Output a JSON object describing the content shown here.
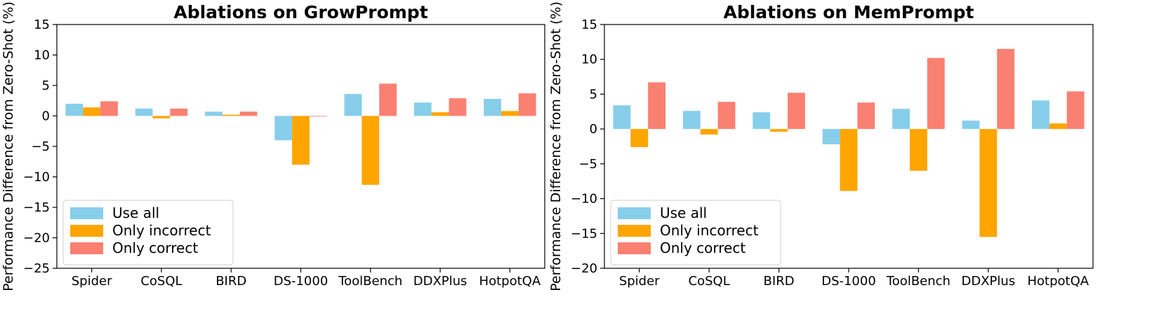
{
  "chart_data": [
    {
      "type": "bar",
      "title": "Ablations on GrowPrompt",
      "xlabel": "",
      "ylabel": "Performance Difference from Zero-Shot (%)",
      "ylim": [
        -25,
        15
      ],
      "yticks": [
        15,
        10,
        5,
        0,
        -5,
        -10,
        -15,
        -20,
        -25
      ],
      "grid": false,
      "legend_position": "lower-left",
      "categories": [
        "Spider",
        "CoSQL",
        "BIRD",
        "DS-1000",
        "ToolBench",
        "DDXPlus",
        "HotpotQA"
      ],
      "series": [
        {
          "name": "Use all",
          "color": "#87ceeb",
          "values": [
            2.0,
            1.2,
            0.7,
            -4.0,
            3.6,
            2.2,
            2.8
          ]
        },
        {
          "name": "Only incorrect",
          "color": "#ffa500",
          "values": [
            1.4,
            -0.4,
            0.2,
            -8.0,
            -11.3,
            0.6,
            0.8
          ]
        },
        {
          "name": "Only correct",
          "color": "#fa8072",
          "values": [
            2.4,
            1.2,
            0.7,
            -0.1,
            5.3,
            2.9,
            3.7
          ]
        }
      ]
    },
    {
      "type": "bar",
      "title": "Ablations on MemPrompt",
      "xlabel": "",
      "ylabel": "Performance Difference from Zero-Shot (%)",
      "ylim": [
        -20,
        15
      ],
      "yticks": [
        15,
        10,
        5,
        0,
        -5,
        -10,
        -15,
        -20
      ],
      "grid": false,
      "legend_position": "lower-left",
      "categories": [
        "Spider",
        "CoSQL",
        "BIRD",
        "DS-1000",
        "ToolBench",
        "DDXPlus",
        "HotpotQA"
      ],
      "series": [
        {
          "name": "Use all",
          "color": "#87ceeb",
          "values": [
            3.4,
            2.6,
            2.4,
            -2.2,
            2.9,
            1.2,
            4.1
          ]
        },
        {
          "name": "Only incorrect",
          "color": "#ffa500",
          "values": [
            -2.6,
            -0.8,
            -0.4,
            -8.9,
            -6.0,
            -15.5,
            0.8
          ]
        },
        {
          "name": "Only correct",
          "color": "#fa8072",
          "values": [
            6.7,
            3.9,
            5.2,
            3.8,
            10.2,
            11.5,
            5.4
          ]
        }
      ]
    }
  ]
}
